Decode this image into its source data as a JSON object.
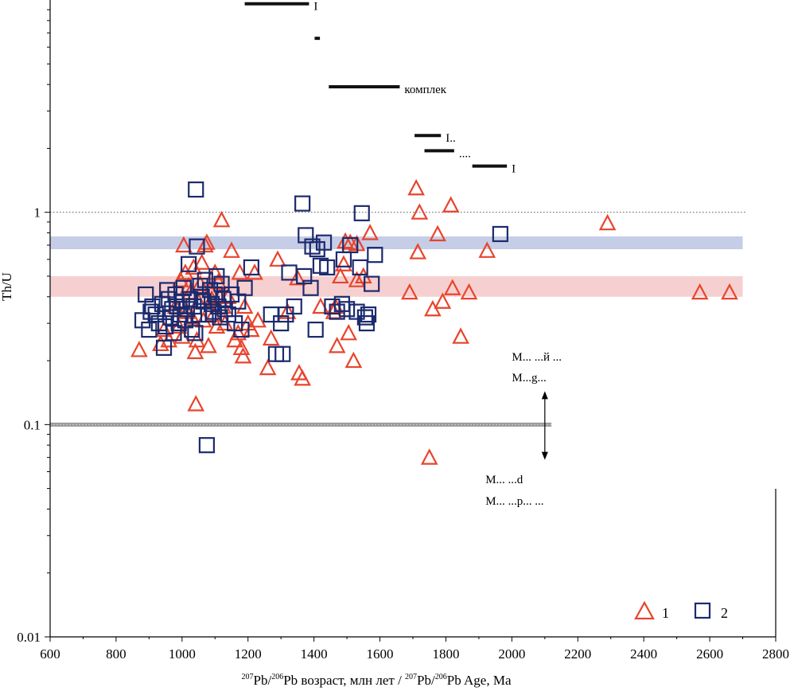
{
  "chart_data": {
    "type": "scatter",
    "title": "",
    "xlabel": {
      "sup1": "207",
      "t1": "Pb/",
      "sup2": "206",
      "t2": "Pb возраст, млн лет / ",
      "sup3": "207",
      "t3": "Pb/",
      "sup4": "206",
      "t4": "Pb Age, Ma"
    },
    "ylabel": "Th/U",
    "xlim": [
      600,
      2800
    ],
    "ylim": [
      0.01,
      10
    ],
    "yscale": "log",
    "x_ticks": [
      600,
      800,
      1000,
      1200,
      1400,
      1600,
      1800,
      2000,
      2200,
      2400,
      2600,
      2800
    ],
    "y_ticks": [
      {
        "value": 1,
        "label": "1"
      },
      {
        "value": 0.1,
        "label": "0.1"
      },
      {
        "value": 0.01,
        "label": "0.01"
      }
    ],
    "reference_line": {
      "y": 1,
      "style": "dotted"
    },
    "boundary_line": {
      "y": 0.1,
      "xmax": 2120,
      "color": "#999999"
    },
    "bands": [
      {
        "ymin": 0.67,
        "ymax": 0.77,
        "xmin": 600,
        "xmax": 2700,
        "color": "#c6cde6"
      },
      {
        "ymin": 0.4,
        "ymax": 0.5,
        "xmin": 600,
        "xmax": 2700,
        "color": "#f6d0d0"
      }
    ],
    "age_bars": [
      {
        "x1": 1190,
        "x2": 1385,
        "y": 9.6,
        "label": "I"
      },
      {
        "x1": 1402,
        "x2": 1418,
        "y": 6.6,
        "label": ""
      },
      {
        "x1": 1445,
        "x2": 1660,
        "y": 3.9,
        "label": "комплек"
      },
      {
        "x1": 1705,
        "x2": 1785,
        "y": 2.3,
        "label": "I.."
      },
      {
        "x1": 1735,
        "x2": 1825,
        "y": 1.95,
        "label": "...."
      },
      {
        "x1": 1880,
        "x2": 1985,
        "y": 1.65,
        "label": "I"
      }
    ],
    "annotations": [
      {
        "text": "M... ...й ...",
        "x": 2000,
        "y": 0.2
      },
      {
        "text": "M...g...",
        "x": 2000,
        "y": 0.16
      },
      {
        "text": "M... ...d",
        "x": 1920,
        "y": 0.053
      },
      {
        "text": "M... ...р... ...",
        "x": 1920,
        "y": 0.042
      }
    ],
    "arrow": {
      "x": 2100,
      "y_top": 0.14,
      "y_bottom": 0.07
    },
    "legend": {
      "position": "bottom-right",
      "labels": [
        "1",
        "2"
      ]
    },
    "series": [
      {
        "name": "1",
        "marker": "triangle",
        "color": "#e8442c",
        "points": [
          [
            870,
            0.225
          ],
          [
            935,
            0.24
          ],
          [
            945,
            0.28
          ],
          [
            960,
            0.25
          ],
          [
            980,
            0.36
          ],
          [
            990,
            0.29
          ],
          [
            995,
            0.48
          ],
          [
            1000,
            0.26
          ],
          [
            1005,
            0.7
          ],
          [
            1010,
            0.52
          ],
          [
            1015,
            0.34
          ],
          [
            1020,
            0.45
          ],
          [
            1025,
            0.42
          ],
          [
            1030,
            0.32
          ],
          [
            1035,
            0.55
          ],
          [
            1040,
            0.22
          ],
          [
            1042,
            0.125
          ],
          [
            1045,
            0.25
          ],
          [
            1050,
            0.38
          ],
          [
            1055,
            0.46
          ],
          [
            1060,
            0.58
          ],
          [
            1065,
            0.31
          ],
          [
            1070,
            0.7
          ],
          [
            1075,
            0.72
          ],
          [
            1080,
            0.235
          ],
          [
            1085,
            0.43
          ],
          [
            1090,
            0.39
          ],
          [
            1095,
            0.33
          ],
          [
            1100,
            0.52
          ],
          [
            1105,
            0.29
          ],
          [
            1110,
            0.47
          ],
          [
            1115,
            0.4
          ],
          [
            1120,
            0.92
          ],
          [
            1125,
            0.36
          ],
          [
            1130,
            0.3
          ],
          [
            1140,
            0.4
          ],
          [
            1150,
            0.66
          ],
          [
            1160,
            0.25
          ],
          [
            1170,
            0.27
          ],
          [
            1175,
            0.52
          ],
          [
            1180,
            0.23
          ],
          [
            1185,
            0.21
          ],
          [
            1190,
            0.36
          ],
          [
            1200,
            0.3
          ],
          [
            1210,
            0.28
          ],
          [
            1220,
            0.52
          ],
          [
            1230,
            0.31
          ],
          [
            1260,
            0.185
          ],
          [
            1270,
            0.255
          ],
          [
            1290,
            0.6
          ],
          [
            1320,
            0.34
          ],
          [
            1350,
            0.49
          ],
          [
            1355,
            0.175
          ],
          [
            1365,
            0.165
          ],
          [
            1420,
            0.36
          ],
          [
            1460,
            0.34
          ],
          [
            1465,
            0.36
          ],
          [
            1470,
            0.235
          ],
          [
            1480,
            0.5
          ],
          [
            1490,
            0.57
          ],
          [
            1495,
            0.73
          ],
          [
            1505,
            0.27
          ],
          [
            1510,
            0.72
          ],
          [
            1520,
            0.2
          ],
          [
            1530,
            0.71
          ],
          [
            1530,
            0.48
          ],
          [
            1550,
            0.5
          ],
          [
            1570,
            0.8
          ],
          [
            1690,
            0.42
          ],
          [
            1710,
            1.3
          ],
          [
            1715,
            0.65
          ],
          [
            1720,
            1.0
          ],
          [
            1750,
            0.07
          ],
          [
            1760,
            0.35
          ],
          [
            1775,
            0.79
          ],
          [
            1790,
            0.38
          ],
          [
            1815,
            1.08
          ],
          [
            1820,
            0.44
          ],
          [
            1845,
            0.26
          ],
          [
            1870,
            0.42
          ],
          [
            1925,
            0.66
          ],
          [
            2290,
            0.89
          ],
          [
            2570,
            0.42
          ],
          [
            2660,
            0.42
          ]
        ]
      },
      {
        "name": "2",
        "marker": "square",
        "color": "#1c2a6e",
        "points": [
          [
            880,
            0.31
          ],
          [
            890,
            0.41
          ],
          [
            900,
            0.28
          ],
          [
            905,
            0.34
          ],
          [
            910,
            0.36
          ],
          [
            920,
            0.33
          ],
          [
            930,
            0.3
          ],
          [
            940,
            0.37
          ],
          [
            945,
            0.23
          ],
          [
            950,
            0.29
          ],
          [
            955,
            0.43
          ],
          [
            960,
            0.39
          ],
          [
            965,
            0.32
          ],
          [
            970,
            0.35
          ],
          [
            975,
            0.27
          ],
          [
            980,
            0.41
          ],
          [
            985,
            0.36
          ],
          [
            990,
            0.3
          ],
          [
            995,
            0.33
          ],
          [
            1000,
            0.38
          ],
          [
            1005,
            0.44
          ],
          [
            1010,
            0.31
          ],
          [
            1015,
            0.35
          ],
          [
            1020,
            0.57
          ],
          [
            1025,
            0.39
          ],
          [
            1030,
            0.28
          ],
          [
            1035,
            0.36
          ],
          [
            1040,
            0.27
          ],
          [
            1042,
            1.28
          ],
          [
            1045,
            0.69
          ],
          [
            1050,
            0.33
          ],
          [
            1055,
            0.45
          ],
          [
            1060,
            0.4
          ],
          [
            1065,
            0.38
          ],
          [
            1070,
            0.48
          ],
          [
            1075,
            0.08
          ],
          [
            1080,
            0.33
          ],
          [
            1085,
            0.43
          ],
          [
            1090,
            0.37
          ],
          [
            1095,
            0.34
          ],
          [
            1100,
            0.41
          ],
          [
            1105,
            0.5
          ],
          [
            1110,
            0.36
          ],
          [
            1115,
            0.32
          ],
          [
            1120,
            0.46
          ],
          [
            1125,
            0.39
          ],
          [
            1130,
            0.35
          ],
          [
            1140,
            0.33
          ],
          [
            1150,
            0.41
          ],
          [
            1160,
            0.3
          ],
          [
            1170,
            0.38
          ],
          [
            1180,
            0.28
          ],
          [
            1190,
            0.44
          ],
          [
            1210,
            0.55
          ],
          [
            1270,
            0.33
          ],
          [
            1285,
            0.215
          ],
          [
            1300,
            0.3
          ],
          [
            1305,
            0.215
          ],
          [
            1315,
            0.33
          ],
          [
            1325,
            0.52
          ],
          [
            1340,
            0.36
          ],
          [
            1365,
            1.1
          ],
          [
            1370,
            0.5
          ],
          [
            1375,
            0.78
          ],
          [
            1390,
            0.44
          ],
          [
            1395,
            0.69
          ],
          [
            1405,
            0.28
          ],
          [
            1410,
            0.67
          ],
          [
            1420,
            0.56
          ],
          [
            1430,
            0.72
          ],
          [
            1440,
            0.55
          ],
          [
            1455,
            0.36
          ],
          [
            1470,
            0.34
          ],
          [
            1485,
            0.37
          ],
          [
            1490,
            0.6
          ],
          [
            1500,
            0.35
          ],
          [
            1510,
            0.7
          ],
          [
            1530,
            0.34
          ],
          [
            1540,
            0.55
          ],
          [
            1545,
            0.99
          ],
          [
            1555,
            0.32
          ],
          [
            1560,
            0.3
          ],
          [
            1565,
            0.33
          ],
          [
            1575,
            0.46
          ],
          [
            1585,
            0.63
          ],
          [
            1965,
            0.79
          ]
        ]
      }
    ]
  }
}
